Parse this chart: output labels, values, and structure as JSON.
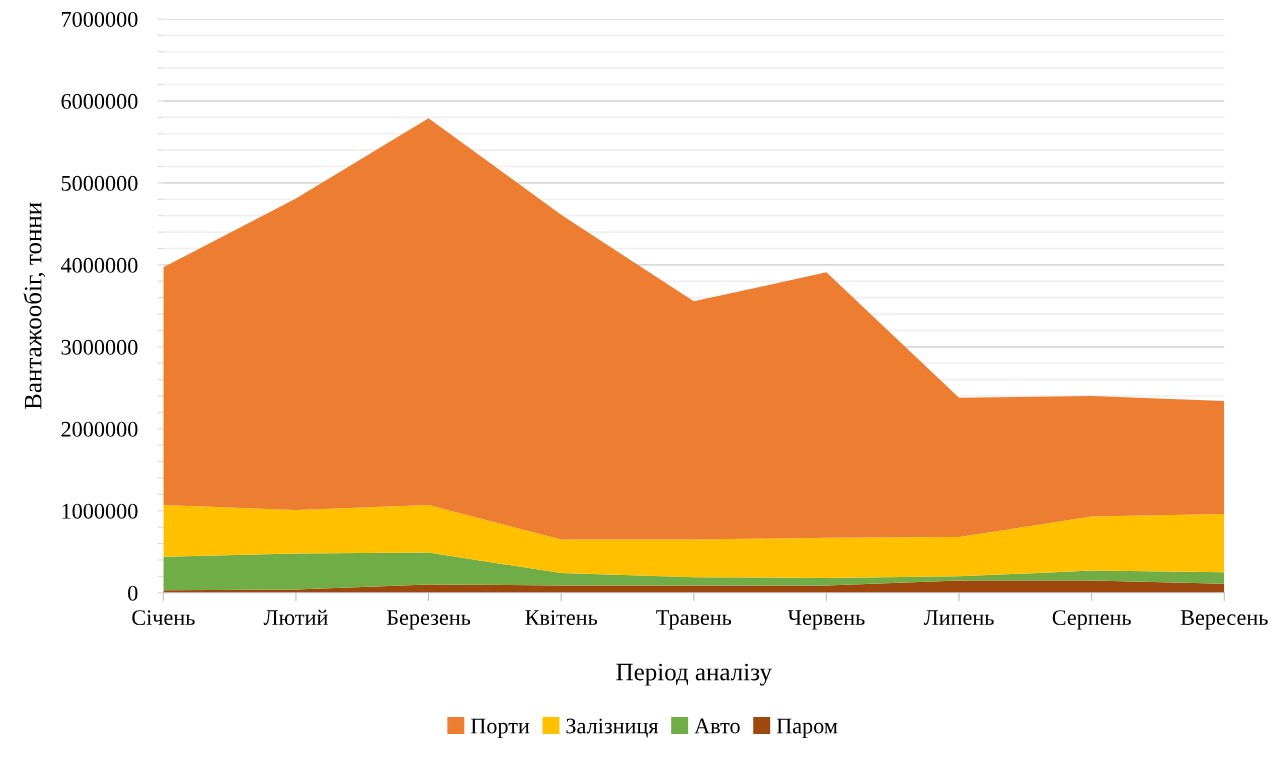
{
  "chart_data": {
    "type": "area",
    "stacked": true,
    "xlabel": "Період аналізу",
    "ylabel": "Вантажообіг, тонни",
    "categories": [
      "Січень",
      "Лютий",
      "Березень",
      "Квітень",
      "Травень",
      "Червень",
      "Липень",
      "Серпень",
      "Вересень"
    ],
    "series": [
      {
        "name": "Паром",
        "color": "#9e480e",
        "values": [
          30000,
          40000,
          100000,
          90000,
          90000,
          90000,
          150000,
          150000,
          110000
        ]
      },
      {
        "name": "Авто",
        "color": "#70ad47",
        "values": [
          410000,
          440000,
          390000,
          150000,
          100000,
          90000,
          50000,
          120000,
          140000
        ]
      },
      {
        "name": "Залізниця",
        "color": "#ffc000",
        "values": [
          630000,
          530000,
          580000,
          410000,
          460000,
          490000,
          480000,
          660000,
          710000
        ]
      },
      {
        "name": "Порти",
        "color": "#ed7d31",
        "values": [
          2900000,
          3800000,
          4720000,
          3960000,
          2905000,
          3240000,
          1700000,
          1470000,
          1380000
        ]
      }
    ],
    "ylim": [
      0,
      7000000
    ],
    "yticks": [
      0,
      {
        "value": 200000,
        "label": null
      },
      {
        "value": 400000,
        "label": null
      },
      {
        "value": 600000,
        "label": null
      },
      {
        "value": 800000,
        "label": null
      },
      1000000,
      {
        "value": 1200000,
        "label": null
      },
      {
        "value": 1400000,
        "label": null
      },
      {
        "value": 1600000,
        "label": null
      },
      {
        "value": 1800000,
        "label": null
      },
      2000000,
      {
        "value": 2200000,
        "label": null
      },
      {
        "value": 2400000,
        "label": null
      },
      {
        "value": 2600000,
        "label": null
      },
      {
        "value": 2800000,
        "label": null
      },
      3000000,
      {
        "value": 3200000,
        "label": null
      },
      {
        "value": 3400000,
        "label": null
      },
      {
        "value": 3600000,
        "label": null
      },
      {
        "value": 3800000,
        "label": null
      },
      4000000,
      {
        "value": 4200000,
        "label": null
      },
      {
        "value": 4400000,
        "label": null
      },
      {
        "value": 4600000,
        "label": null
      },
      {
        "value": 4800000,
        "label": null
      },
      5000000,
      {
        "value": 5200000,
        "label": null
      },
      {
        "value": 5400000,
        "label": null
      },
      {
        "value": 5600000,
        "label": null
      },
      {
        "value": 5800000,
        "label": null
      },
      6000000,
      {
        "value": 6200000,
        "label": null
      },
      {
        "value": 6400000,
        "label": null
      },
      {
        "value": 6600000,
        "label": null
      },
      {
        "value": 6800000,
        "label": null
      },
      7000000
    ],
    "grid": "y",
    "legend": "bottom"
  }
}
